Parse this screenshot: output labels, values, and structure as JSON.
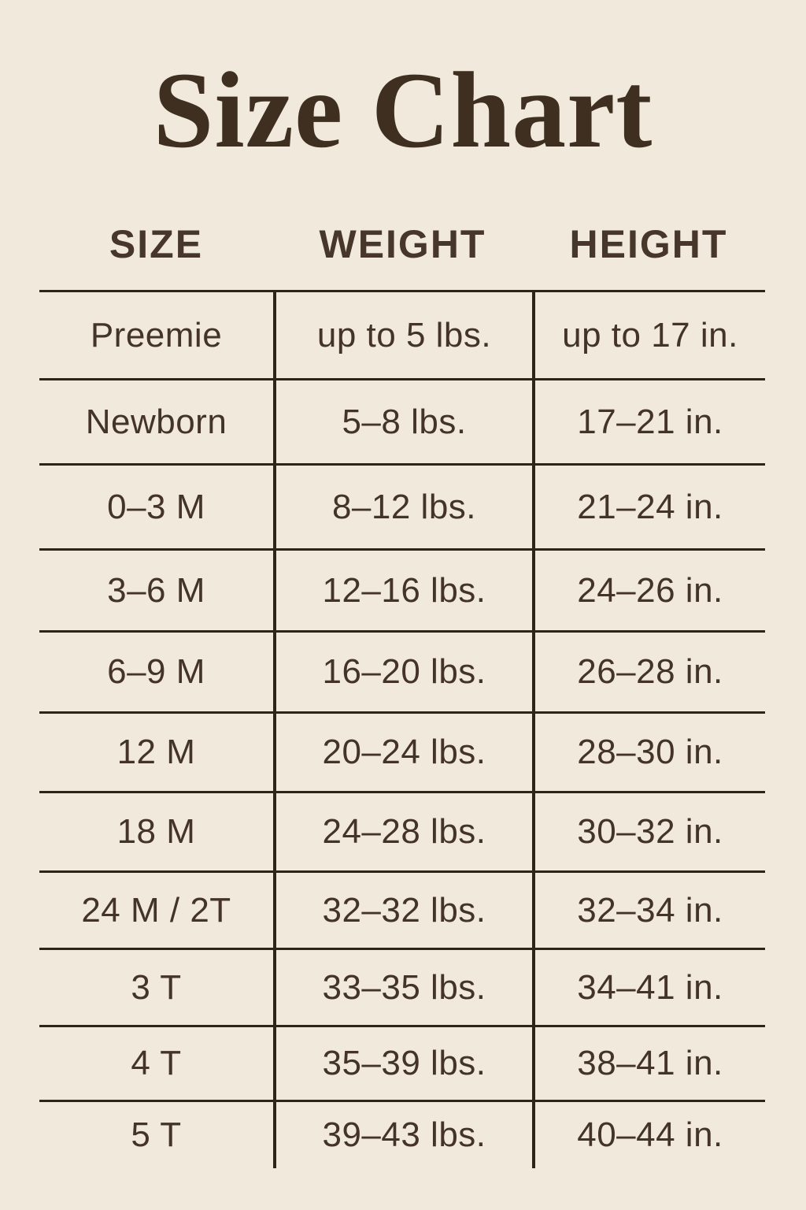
{
  "page": {
    "title": "Size Chart"
  },
  "colors": {
    "background": "#f2e9dd",
    "title_text": "#3e2f20",
    "header_text": "#47362a",
    "body_text": "#443428",
    "line": "#2f2418"
  },
  "table": {
    "headers": [
      "SIZE",
      "WEIGHT",
      "HEIGHT"
    ],
    "rows": [
      {
        "size": "Preemie",
        "weight": "up to 5 lbs.",
        "height": "up to 17 in."
      },
      {
        "size": "Newborn",
        "weight": "5–8 lbs.",
        "height": "17–21 in."
      },
      {
        "size": "0–3 M",
        "weight": "8–12 lbs.",
        "height": "21–24 in."
      },
      {
        "size": "3–6 M",
        "weight": "12–16 lbs.",
        "height": "24–26 in."
      },
      {
        "size": "6–9 M",
        "weight": "16–20 lbs.",
        "height": "26–28 in."
      },
      {
        "size": "12 M",
        "weight": "20–24 lbs.",
        "height": "28–30 in."
      },
      {
        "size": "18 M",
        "weight": "24–28 lbs.",
        "height": "30–32 in."
      },
      {
        "size": "24 M / 2T",
        "weight": "32–32 lbs.",
        "height": "32–34 in."
      },
      {
        "size": "3 T",
        "weight": "33–35 lbs.",
        "height": "34–41 in."
      },
      {
        "size": "4 T",
        "weight": "35–39 lbs.",
        "height": "38–41 in."
      },
      {
        "size": "5 T",
        "weight": "39–43 lbs.",
        "height": "40–44 in."
      }
    ]
  }
}
